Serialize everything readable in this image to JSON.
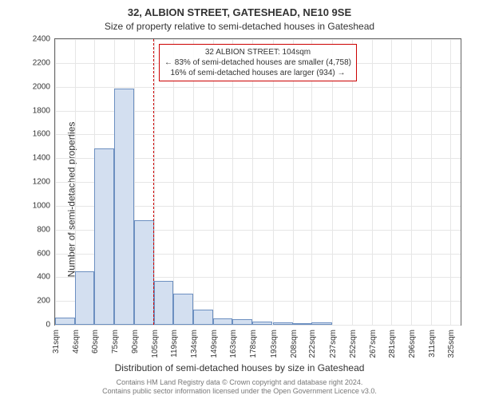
{
  "chart": {
    "type": "histogram",
    "title": "32, ALBION STREET, GATESHEAD, NE10 9SE",
    "subtitle": "Size of property relative to semi-detached houses in Gateshead",
    "xlabel": "Distribution of semi-detached houses by size in Gateshead",
    "ylabel": "Number of semi-detached properties",
    "title_fontsize": 13,
    "subtitle_fontsize": 12,
    "label_fontsize": 12,
    "tick_fontsize": 10,
    "background_color": "#ffffff",
    "grid_color": "#e6e6e6",
    "border_color": "#666666",
    "bar_fill": "#d3dff0",
    "bar_stroke": "#6c8fc0",
    "refline_color": "#cc0000",
    "xlim": [
      31,
      333
    ],
    "ylim": [
      0,
      2400
    ],
    "ytick_step": 200,
    "yticks": [
      0,
      200,
      400,
      600,
      800,
      1000,
      1200,
      1400,
      1600,
      1800,
      2000,
      2200,
      2400
    ],
    "xticks": [
      31,
      46,
      60,
      75,
      90,
      105,
      119,
      134,
      149,
      163,
      178,
      193,
      208,
      222,
      237,
      252,
      267,
      281,
      296,
      311,
      325
    ],
    "xtick_labels": [
      "31sqm",
      "46sqm",
      "60sqm",
      "75sqm",
      "90sqm",
      "105sqm",
      "119sqm",
      "134sqm",
      "149sqm",
      "163sqm",
      "178sqm",
      "193sqm",
      "208sqm",
      "222sqm",
      "237sqm",
      "252sqm",
      "267sqm",
      "281sqm",
      "296sqm",
      "311sqm",
      "325sqm"
    ],
    "bars": [
      {
        "x0": 31,
        "x1": 46,
        "y": 60
      },
      {
        "x0": 46,
        "x1": 60,
        "y": 450
      },
      {
        "x0": 60,
        "x1": 75,
        "y": 1480
      },
      {
        "x0": 75,
        "x1": 90,
        "y": 1985
      },
      {
        "x0": 90,
        "x1": 105,
        "y": 880
      },
      {
        "x0": 105,
        "x1": 119,
        "y": 370
      },
      {
        "x0": 119,
        "x1": 134,
        "y": 260
      },
      {
        "x0": 134,
        "x1": 149,
        "y": 130
      },
      {
        "x0": 149,
        "x1": 163,
        "y": 55
      },
      {
        "x0": 163,
        "x1": 178,
        "y": 45
      },
      {
        "x0": 178,
        "x1": 193,
        "y": 25
      },
      {
        "x0": 193,
        "x1": 208,
        "y": 20
      },
      {
        "x0": 208,
        "x1": 222,
        "y": 5
      },
      {
        "x0": 222,
        "x1": 237,
        "y": 20
      },
      {
        "x0": 237,
        "x1": 252,
        "y": 0
      },
      {
        "x0": 252,
        "x1": 267,
        "y": 0
      },
      {
        "x0": 267,
        "x1": 281,
        "y": 0
      },
      {
        "x0": 281,
        "x1": 296,
        "y": 0
      },
      {
        "x0": 296,
        "x1": 311,
        "y": 0
      },
      {
        "x0": 311,
        "x1": 325,
        "y": 0
      }
    ],
    "reference_line_x": 104,
    "annotation": {
      "line1": "32 ALBION STREET: 104sqm",
      "line2": "← 83% of semi-detached houses are smaller (4,758)",
      "line3": "16% of semi-detached houses are larger (934) →",
      "border_color": "#cc0000",
      "fontsize": 10
    }
  },
  "footer": {
    "line1": "Contains HM Land Registry data © Crown copyright and database right 2024.",
    "line2": "Contains public sector information licensed under the Open Government Licence v3.0.",
    "color": "#777777",
    "fontsize": 9
  }
}
